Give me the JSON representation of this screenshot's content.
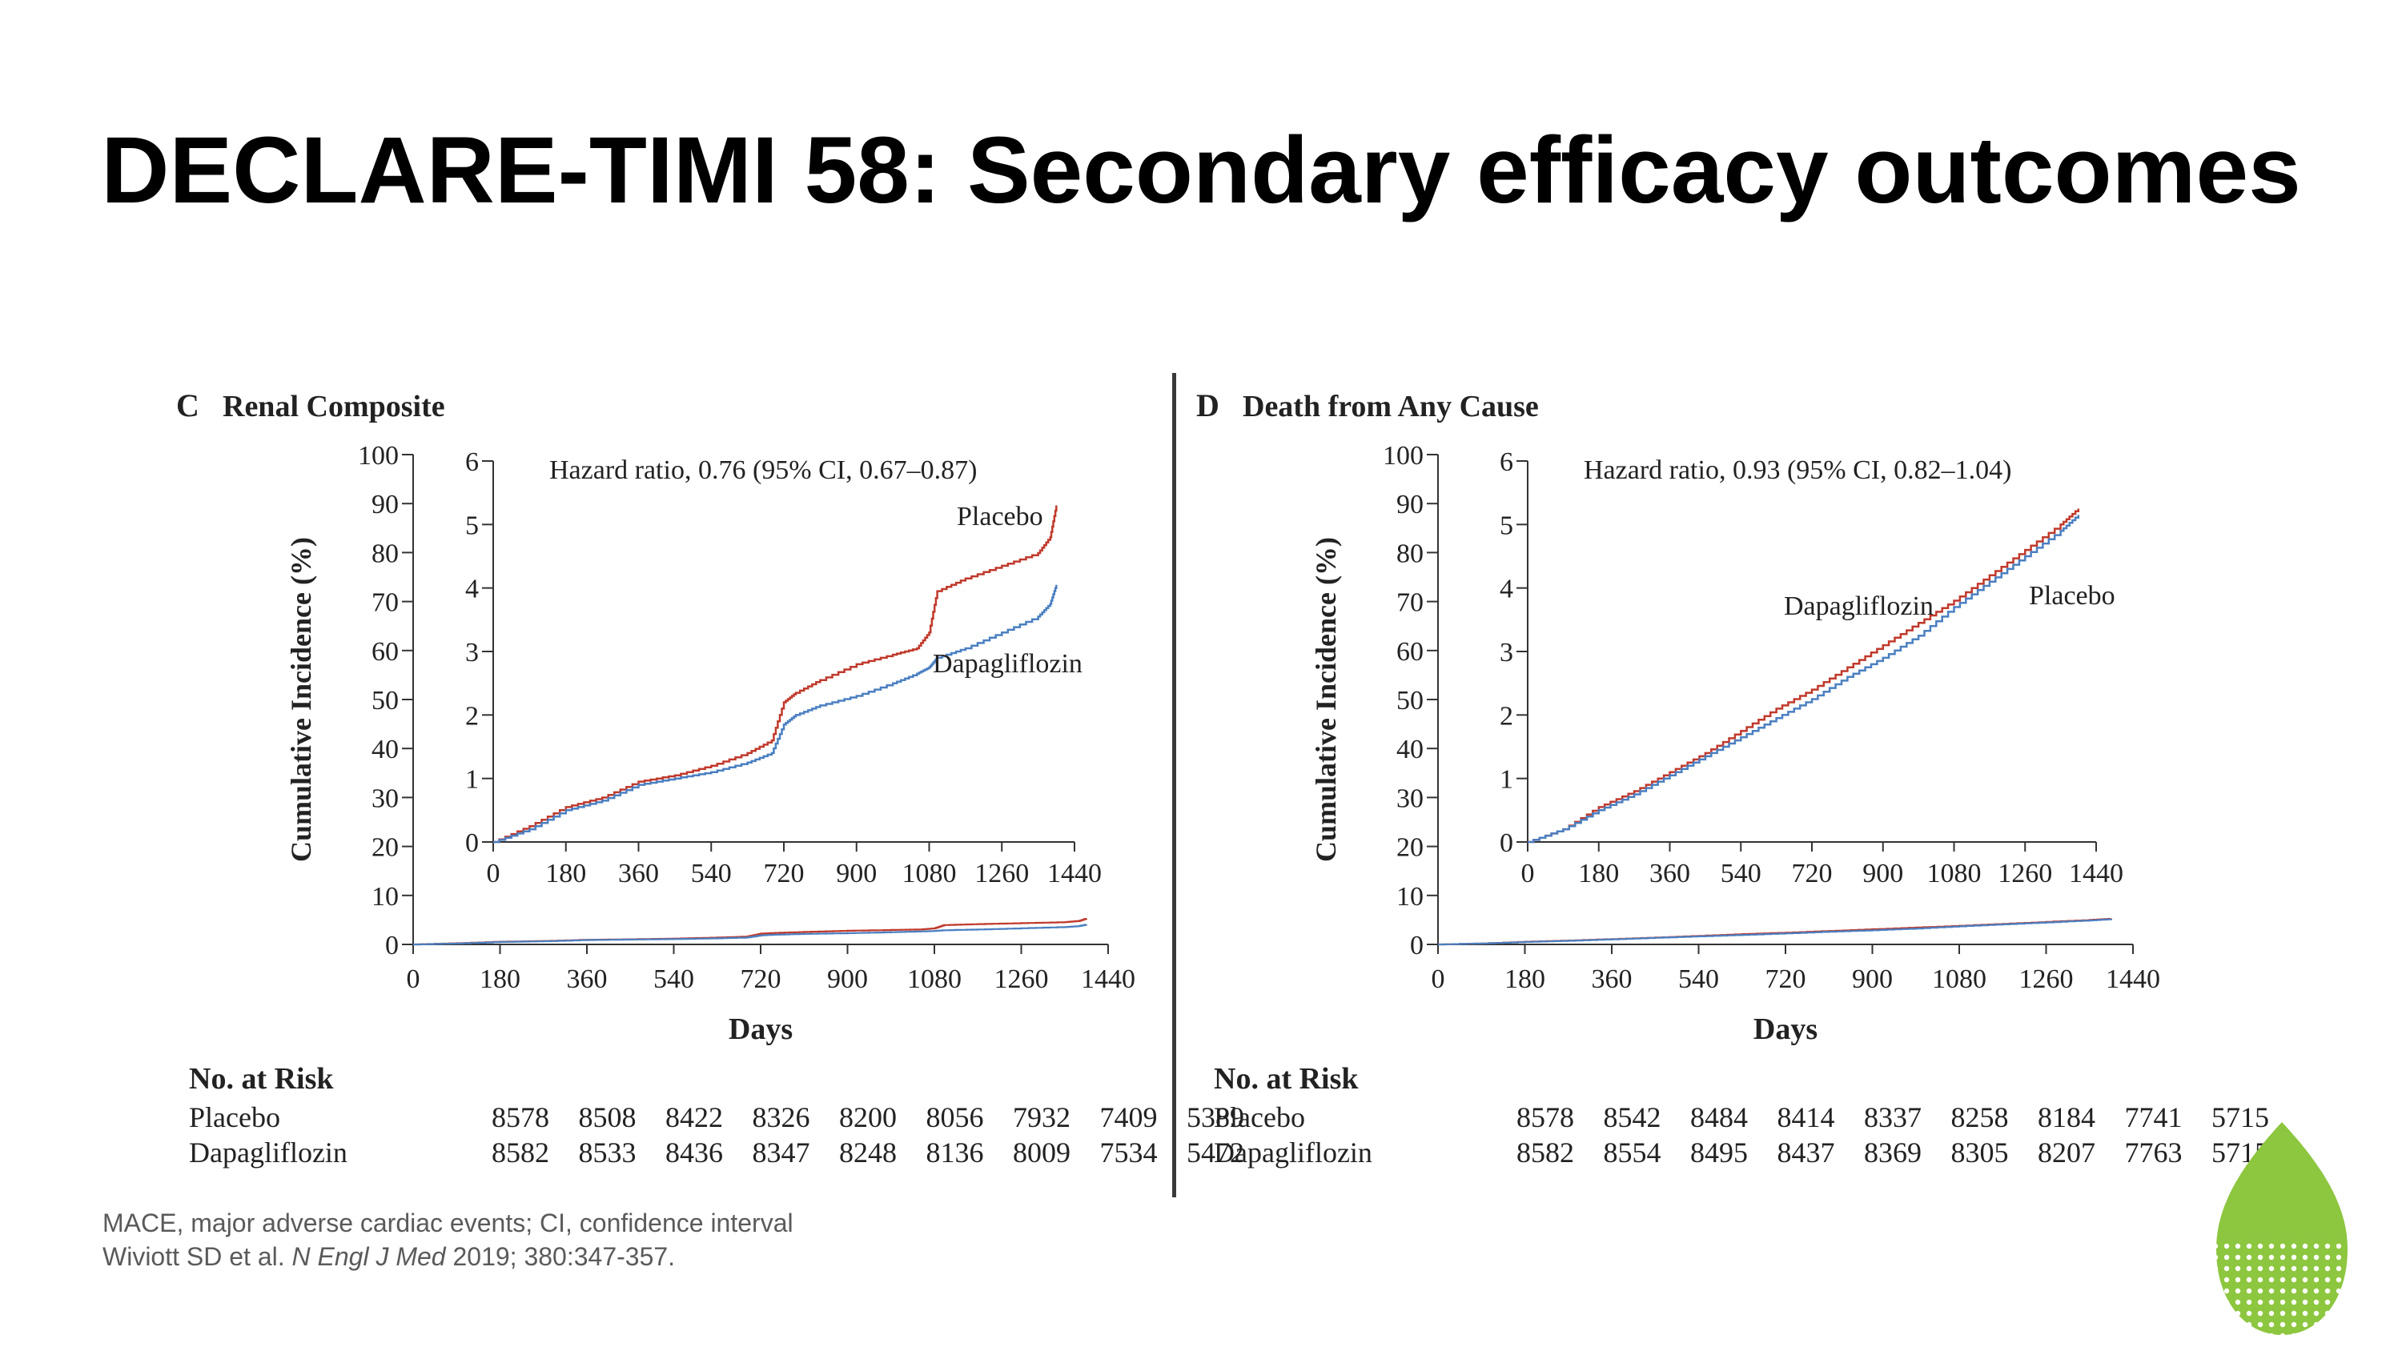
{
  "slide": {
    "title": "DECLARE-TIMI 58: Secondary efficacy outcomes",
    "footnote_line1": "MACE, major adverse cardiac events; CI, confidence interval",
    "citation_authors": "Wiviott SD et al.",
    "citation_journal": "N Engl J Med",
    "citation_rest": "2019; 380:347-357.",
    "logo_icon": "leaf-logo-icon",
    "colors": {
      "placebo": "#c0392b",
      "dapagliflozin": "#4a7fc1",
      "logo": "#8dc63f"
    }
  },
  "chart_data": [
    {
      "type": "line",
      "panel_letter": "C",
      "title": "Renal Composite",
      "xlabel": "Days",
      "ylabel": "Cumulative Incidence (%)",
      "xlim": [
        0,
        1440
      ],
      "ylim": [
        0,
        100
      ],
      "x_ticks": [
        0,
        180,
        360,
        540,
        720,
        900,
        1080,
        1260,
        1440
      ],
      "y_ticks": [
        0,
        10,
        20,
        30,
        40,
        50,
        60,
        70,
        80,
        90,
        100
      ],
      "inset": {
        "xlim": [
          0,
          1440
        ],
        "ylim": [
          0,
          6
        ],
        "x_ticks": [
          0,
          180,
          360,
          540,
          720,
          900,
          1080,
          1260,
          1440
        ],
        "y_ticks": [
          0,
          1,
          2,
          3,
          4,
          5,
          6
        ],
        "annotation": "Hazard ratio, 0.76 (95% CI, 0.67–0.87)"
      },
      "series": [
        {
          "name": "Placebo",
          "x": [
            0,
            90,
            180,
            270,
            360,
            450,
            540,
            630,
            690,
            720,
            750,
            810,
            900,
            990,
            1050,
            1080,
            1100,
            1170,
            1260,
            1350,
            1380,
            1395
          ],
          "y": [
            0,
            0.25,
            0.55,
            0.7,
            0.95,
            1.05,
            1.2,
            1.4,
            1.6,
            2.2,
            2.35,
            2.55,
            2.8,
            2.95,
            3.05,
            3.3,
            3.95,
            4.15,
            4.35,
            4.55,
            4.8,
            5.3
          ]
        },
        {
          "name": "Dapagliflozin",
          "x": [
            0,
            90,
            180,
            270,
            360,
            450,
            540,
            630,
            690,
            720,
            750,
            810,
            900,
            990,
            1050,
            1080,
            1100,
            1170,
            1260,
            1350,
            1380,
            1395
          ],
          "y": [
            0,
            0.2,
            0.5,
            0.65,
            0.9,
            1.0,
            1.1,
            1.25,
            1.4,
            1.85,
            2.0,
            2.15,
            2.3,
            2.5,
            2.65,
            2.75,
            2.9,
            3.05,
            3.3,
            3.55,
            3.75,
            4.05
          ]
        }
      ],
      "risk_table": {
        "header": "No. at Risk",
        "rows": [
          {
            "label": "Placebo",
            "values": [
              "8578",
              "8508",
              "8422",
              "8326",
              "8200",
              "8056",
              "7932",
              "7409",
              "5389"
            ]
          },
          {
            "label": "Dapagliflozin",
            "values": [
              "8582",
              "8533",
              "8436",
              "8347",
              "8248",
              "8136",
              "8009",
              "7534",
              "5472"
            ]
          }
        ]
      }
    },
    {
      "type": "line",
      "panel_letter": "D",
      "title": "Death from Any Cause",
      "xlabel": "Days",
      "ylabel": "Cumulative Incidence (%)",
      "xlim": [
        0,
        1440
      ],
      "ylim": [
        0,
        100
      ],
      "x_ticks": [
        0,
        180,
        360,
        540,
        720,
        900,
        1080,
        1260,
        1440
      ],
      "y_ticks": [
        0,
        10,
        20,
        30,
        40,
        50,
        60,
        70,
        80,
        90,
        100
      ],
      "inset": {
        "xlim": [
          0,
          1440
        ],
        "ylim": [
          0,
          6
        ],
        "x_ticks": [
          0,
          180,
          360,
          540,
          720,
          900,
          1080,
          1260,
          1440
        ],
        "y_ticks": [
          0,
          1,
          2,
          3,
          4,
          5,
          6
        ],
        "annotation": "Hazard ratio, 0.93 (95% CI, 0.82–1.04)"
      },
      "series": [
        {
          "name": "Placebo",
          "x": [
            0,
            90,
            180,
            270,
            360,
            450,
            540,
            630,
            720,
            810,
            900,
            990,
            1080,
            1170,
            1260,
            1350,
            1395
          ],
          "y": [
            0,
            0.2,
            0.55,
            0.8,
            1.1,
            1.4,
            1.75,
            2.1,
            2.4,
            2.75,
            3.1,
            3.45,
            3.8,
            4.2,
            4.6,
            5.0,
            5.25
          ]
        },
        {
          "name": "Dapagliflozin",
          "x": [
            0,
            90,
            180,
            270,
            360,
            450,
            540,
            630,
            720,
            810,
            900,
            990,
            1080,
            1170,
            1260,
            1350,
            1395
          ],
          "y": [
            0,
            0.2,
            0.5,
            0.75,
            1.05,
            1.35,
            1.65,
            1.95,
            2.25,
            2.6,
            2.9,
            3.25,
            3.7,
            4.1,
            4.5,
            4.9,
            5.15
          ]
        }
      ],
      "labels": {
        "placebo_label": "Placebo",
        "dapagliflozin_label": "Dapagliflozin"
      },
      "risk_table": {
        "header": "No. at Risk",
        "rows": [
          {
            "label": "Placebo",
            "values": [
              "8578",
              "8542",
              "8484",
              "8414",
              "8337",
              "8258",
              "8184",
              "7741",
              "5715"
            ]
          },
          {
            "label": "Dapagliflozin",
            "values": [
              "8582",
              "8554",
              "8495",
              "8437",
              "8369",
              "8305",
              "8207",
              "7763",
              "5715"
            ]
          }
        ]
      }
    }
  ]
}
